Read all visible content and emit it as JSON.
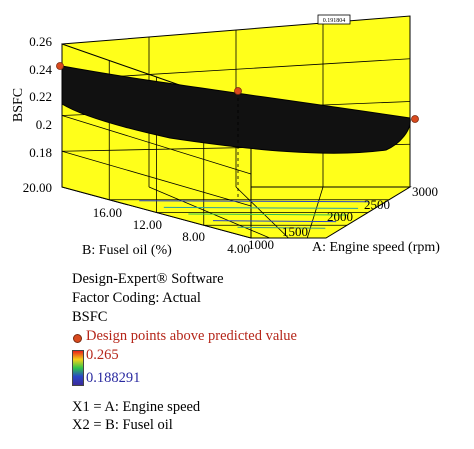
{
  "chart_data": {
    "type": "surface3d",
    "zlabel": "BSFC",
    "xlabel": "A: Engine speed (rpm)",
    "ylabel": "B: Fusel oil (%)",
    "z_ticks": [
      "0.26",
      "0.24",
      "0.22",
      "0.2",
      "0.18"
    ],
    "x_ticks": [
      "1000",
      "1500",
      "2000",
      "2500",
      "3000"
    ],
    "y_ticks": [
      "20.00",
      "16.00",
      "12.00",
      "8.00",
      "4.00"
    ],
    "zlim": [
      0.18,
      0.26
    ],
    "xlim": [
      1000,
      3000
    ],
    "ylim": [
      4,
      20
    ],
    "flag_label": "0.191804",
    "surface_color": "#111111",
    "wall_color": "#ffff1a",
    "design_points": [
      {
        "engine_speed": 1000,
        "fusel_oil": 20,
        "bsfc": 0.24
      },
      {
        "engine_speed": 2000,
        "fusel_oil": 12,
        "bsfc": 0.215
      },
      {
        "engine_speed": 3000,
        "fusel_oil": 4,
        "bsfc": 0.202
      }
    ]
  },
  "legend": {
    "software": "Design-Expert® Software",
    "coding": "Factor Coding: Actual",
    "response": "BSFC",
    "design_points_label": "Design points above predicted value",
    "color_max": "0.265",
    "color_min": "0.188291",
    "x1": "X1 = A: Engine speed",
    "x2": "X2 = B: Fusel oil"
  }
}
